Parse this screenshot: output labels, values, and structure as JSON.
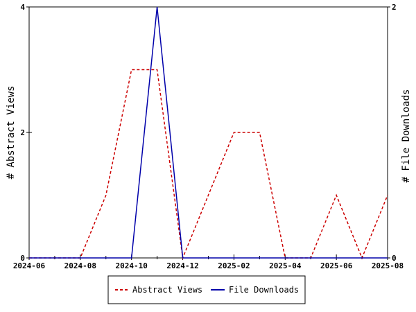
{
  "chart_data": {
    "type": "line",
    "x": [
      "2024-06",
      "2024-07",
      "2024-08",
      "2024-09",
      "2024-10",
      "2024-11",
      "2024-12",
      "2025-01",
      "2025-02",
      "2025-03",
      "2025-04",
      "2025-05",
      "2025-06",
      "2025-07",
      "2025-08"
    ],
    "x_tick_labels": [
      "2024-06",
      "2024-08",
      "2024-10",
      "2024-12",
      "2025-02",
      "2025-04",
      "2025-06",
      "2025-08"
    ],
    "series": [
      {
        "name": "Abstract Views",
        "axis": "left",
        "color": "#cc0000",
        "style": "dashed",
        "values": [
          0,
          0,
          0,
          1,
          3,
          3,
          0,
          1,
          2,
          2,
          0,
          0,
          1,
          0,
          1
        ]
      },
      {
        "name": "File Downloads",
        "axis": "right",
        "color": "#0000aa",
        "style": "solid",
        "values": [
          0,
          0,
          0,
          0,
          0,
          2,
          0,
          0,
          0,
          0,
          0,
          0,
          0,
          0,
          0
        ]
      }
    ],
    "ylabel": "# Abstract Views",
    "ylabel_right": "# File Downloads",
    "ylim": [
      0,
      4
    ],
    "ylim_right": [
      0,
      2
    ],
    "y_ticks": [
      "0",
      "2",
      "4"
    ],
    "y_ticks_right": [
      "0",
      "2"
    ],
    "legend_position": "bottom-center",
    "grid": false
  }
}
